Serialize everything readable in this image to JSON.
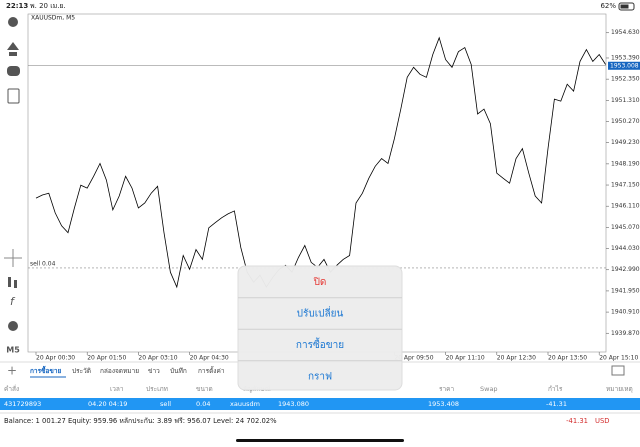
{
  "status_bar": {
    "time": "22:13",
    "date": "พ. 20 เม.ย.",
    "battery": "62%"
  },
  "timeframe_button": "M5",
  "chart_data": {
    "type": "line",
    "title": "XAUUSDm, M5",
    "color": "#000000",
    "categories": [
      "20 Apr 00:30",
      null,
      null,
      null,
      null,
      null,
      null,
      null,
      "20 Apr 01:50",
      null,
      null,
      null,
      null,
      null,
      null,
      null,
      "20 Apr 03:10",
      null,
      null,
      null,
      null,
      null,
      null,
      null,
      "20 Apr 04:30",
      null,
      null,
      null,
      null,
      null,
      null,
      null,
      null,
      null,
      null,
      null,
      null,
      null,
      null,
      null,
      null,
      null,
      null,
      null,
      null,
      null,
      null,
      null,
      null,
      null,
      null,
      null,
      null,
      null,
      null,
      null,
      "20 Apr 09:50",
      null,
      null,
      null,
      null,
      null,
      null,
      null,
      "20 Apr 11:10",
      null,
      null,
      null,
      null,
      null,
      null,
      null,
      "20 Apr 12:30",
      null,
      null,
      null,
      null,
      null,
      null,
      null,
      "20 Apr 13:50",
      null,
      null,
      null,
      null,
      null,
      null,
      null,
      "20 Apr 15:10",
      null
    ],
    "values": [
      1946.51,
      1946.66,
      1946.75,
      1945.78,
      1945.15,
      1944.81,
      1946.02,
      1947.14,
      1947.0,
      1947.58,
      1948.21,
      1947.39,
      1945.93,
      1946.61,
      1947.58,
      1947.0,
      1946.02,
      1946.27,
      1946.75,
      1947.09,
      1944.81,
      1942.87,
      1942.14,
      1943.69,
      1943.01,
      1943.98,
      1943.5,
      1945.05,
      1945.3,
      1945.54,
      1945.73,
      1945.88,
      1944.08,
      1942.87,
      1942.38,
      1942.72,
      1942.14,
      1942.62,
      1943.01,
      1943.21,
      1942.87,
      1943.59,
      1944.18,
      1943.35,
      1943.11,
      1943.5,
      1942.87,
      1943.21,
      1943.5,
      1943.69,
      1946.27,
      1946.75,
      1947.48,
      1948.07,
      1948.45,
      1948.21,
      1949.43,
      1950.88,
      1952.44,
      1952.93,
      1952.59,
      1952.44,
      1953.56,
      1954.38,
      1953.31,
      1952.93,
      1953.7,
      1953.9,
      1953.07,
      1950.64,
      1950.88,
      1950.16,
      1947.73,
      1947.48,
      1947.24,
      1948.45,
      1948.94,
      1947.73,
      1946.61,
      1946.27,
      1948.94,
      1951.37,
      1951.27,
      1952.1,
      1951.76,
      1953.22,
      1953.8,
      1953.22,
      1953.56,
      1953.07
    ],
    "ylim": [
      1938.95,
      1955.55
    ],
    "yticks": [
      {
        "value": 1954.63,
        "label": "1954.630"
      },
      {
        "value": 1953.39,
        "label": "1953.390"
      },
      {
        "value": 1952.35,
        "label": "1952.350"
      },
      {
        "value": 1951.31,
        "label": "1951.310"
      },
      {
        "value": 1950.27,
        "label": "1950.270"
      },
      {
        "value": 1949.23,
        "label": "1949.230"
      },
      {
        "value": 1948.19,
        "label": "1948.190"
      },
      {
        "value": 1947.15,
        "label": "1947.150"
      },
      {
        "value": 1946.11,
        "label": "1946.110"
      },
      {
        "value": 1945.07,
        "label": "1945.070"
      },
      {
        "value": 1944.03,
        "label": "1944.030"
      },
      {
        "value": 1942.99,
        "label": "1942.990"
      },
      {
        "value": 1941.95,
        "label": "1941.950"
      },
      {
        "value": 1940.91,
        "label": "1940.910"
      },
      {
        "value": 1939.87,
        "label": "1939.870"
      }
    ],
    "price_line": {
      "value": 1953.008,
      "label": "1953.008"
    },
    "order_line": {
      "value": 1943.08,
      "label": "sell 0.04"
    }
  },
  "popup_menu": {
    "items": [
      "ปิด",
      "ปรับเปลี่ยน",
      "การซื้อขาย",
      "กราฟ"
    ]
  },
  "tabs": [
    "การซื้อขาย",
    "ประวัติ",
    "กล่องจดหมาย",
    "ข่าว",
    "บันทึก",
    "การตั้งค่า"
  ],
  "table": {
    "headers": [
      "คำสั่ง",
      "เวลา",
      "ประเภท",
      "ขนาด",
      "สัญลักษณ์",
      "ราคา",
      "Swap",
      "กำไร",
      "หมายเหตุ"
    ],
    "rows": [
      [
        "431729893",
        "04.20 04:19",
        "sell",
        "0.04",
        "xauusdm",
        "1943.080",
        "1953.408",
        "-41.31"
      ]
    ]
  },
  "balance": {
    "text": "Balance: 1 001.27 Equity: 959.96 หลักประกัน: 3.89 ฟรี: 956.07 Level: 24 702.02%",
    "profit": "-41.31",
    "currency": "USD"
  }
}
